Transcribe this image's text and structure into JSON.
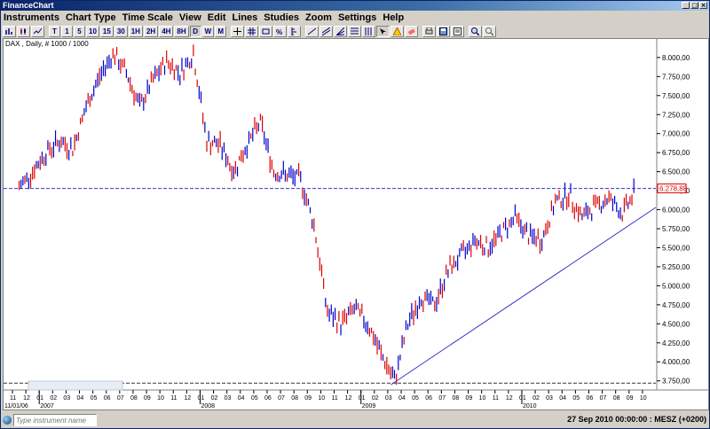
{
  "window": {
    "title": "FinanceChart"
  },
  "menu": [
    "Instruments",
    "Chart Type",
    "Time Scale",
    "View",
    "Edit",
    "Lines",
    "Studies",
    "Zoom",
    "Settings",
    "Help"
  ],
  "toolbar": {
    "timescales": [
      "T",
      "1",
      "5",
      "10",
      "15",
      "30",
      "1H",
      "2H",
      "4H",
      "8H",
      "D",
      "W",
      "M"
    ],
    "selected_timescale": "D"
  },
  "chart": {
    "label": "DAX , Daily, # 1000 / 1000",
    "current_price_label": "6.278,88",
    "y_ticks": [
      "8.000,00",
      "7.750,00",
      "7.500,00",
      "7.250,00",
      "7.000,00",
      "6.750,00",
      "6.500,00",
      "6.250,00",
      "6.000,00",
      "5.750,00",
      "5.500,00",
      "5.250,00",
      "5.000,00",
      "4.750,00",
      "4.500,00",
      "4.250,00",
      "4.000,00",
      "3.750,00"
    ],
    "month_ticks": [
      "11",
      "12",
      "01",
      "02",
      "03",
      "04",
      "05",
      "06",
      "07",
      "08",
      "09",
      "10",
      "11",
      "12",
      "01",
      "02",
      "03",
      "04",
      "05",
      "06",
      "07",
      "08",
      "09",
      "10",
      "11",
      "12",
      "01",
      "02",
      "03",
      "04",
      "05",
      "06",
      "07",
      "08",
      "09",
      "10",
      "11",
      "12",
      "01",
      "02",
      "03",
      "04",
      "05",
      "06",
      "07",
      "08",
      "09",
      "10"
    ],
    "year_labels": [
      "2007",
      "2008",
      "2009",
      "2010"
    ],
    "start_date_label": "11/01/06",
    "colors": {
      "up": "#0000cc",
      "down": "#dd0000",
      "line": "#3333cc",
      "dashed": "#3333cc",
      "bg": "#ffffff"
    }
  },
  "chart_data": {
    "type": "line",
    "title": "DAX , Daily, # 1000 / 1000",
    "xlabel": "",
    "ylabel": "",
    "ylim": [
      3700,
      8150
    ],
    "x": [
      "2006-11",
      "2006-12",
      "2007-01",
      "2007-02",
      "2007-03",
      "2007-04",
      "2007-05",
      "2007-06",
      "2007-07",
      "2007-08",
      "2007-09",
      "2007-10",
      "2007-11",
      "2007-12",
      "2008-01",
      "2008-02",
      "2008-03",
      "2008-04",
      "2008-05",
      "2008-06",
      "2008-07",
      "2008-08",
      "2008-09",
      "2008-10",
      "2008-11",
      "2008-12",
      "2009-01",
      "2009-02",
      "2009-03",
      "2009-04",
      "2009-05",
      "2009-06",
      "2009-07",
      "2009-08",
      "2009-09",
      "2009-10",
      "2009-11",
      "2009-12",
      "2010-01",
      "2010-02",
      "2010-03",
      "2010-04",
      "2010-05",
      "2010-06",
      "2010-07",
      "2010-08",
      "2010-09"
    ],
    "series": [
      {
        "values": [
          6300,
          6500,
          6750,
          6900,
          6800,
          7350,
          7750,
          8050,
          7800,
          7350,
          7700,
          7950,
          7800,
          8050,
          6900,
          6850,
          6500,
          6850,
          7150,
          6500,
          6450,
          6400,
          5800,
          4650,
          4500,
          4700,
          4500,
          4100,
          3750,
          4500,
          4850,
          4750,
          5200,
          5400,
          5600,
          5500,
          5700,
          5900,
          5650,
          5600,
          6100,
          6200,
          5900,
          6050,
          6150,
          5950,
          6250
        ]
      }
    ]
  }
}
